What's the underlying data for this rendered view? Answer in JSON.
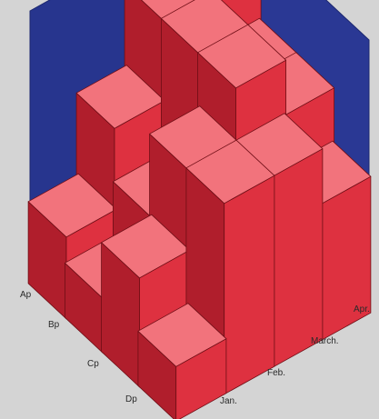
{
  "chart_data": {
    "type": "bar",
    "subtype": "3d-bar",
    "title": "",
    "rows": [
      "Ap",
      "Bp",
      "Cp",
      "Dp"
    ],
    "columns": [
      "Jan.",
      "Feb.",
      "March.",
      "Apr."
    ],
    "zlim": [
      0,
      10
    ],
    "values": [
      [
        3,
        6,
        9,
        9
      ],
      [
        2,
        4,
        9,
        7
      ],
      [
        4,
        7,
        9,
        7
      ],
      [
        2,
        7,
        7,
        5
      ]
    ],
    "colors": {
      "background_panels": "#27358e",
      "bar_front": "#de3140",
      "bar_side": "#b01e2c",
      "bar_top": "#f2737c",
      "bar_edge": "#6e0d15"
    },
    "grid": false,
    "legend": "none"
  }
}
